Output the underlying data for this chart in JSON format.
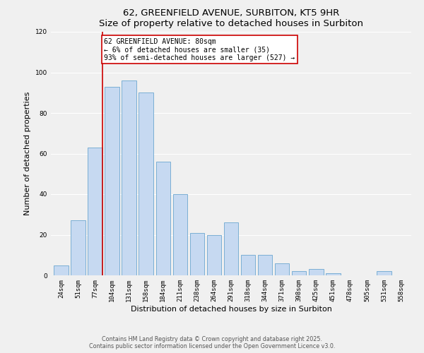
{
  "title": "62, GREENFIELD AVENUE, SURBITON, KT5 9HR",
  "subtitle": "Size of property relative to detached houses in Surbiton",
  "xlabel": "Distribution of detached houses by size in Surbiton",
  "ylabel": "Number of detached properties",
  "bar_labels": [
    "24sqm",
    "51sqm",
    "77sqm",
    "104sqm",
    "131sqm",
    "158sqm",
    "184sqm",
    "211sqm",
    "238sqm",
    "264sqm",
    "291sqm",
    "318sqm",
    "344sqm",
    "371sqm",
    "398sqm",
    "425sqm",
    "451sqm",
    "478sqm",
    "505sqm",
    "531sqm",
    "558sqm"
  ],
  "bar_values": [
    5,
    27,
    63,
    93,
    96,
    90,
    56,
    40,
    21,
    20,
    26,
    10,
    10,
    6,
    2,
    3,
    1,
    0,
    0,
    2,
    0
  ],
  "bar_color": "#c6d9f1",
  "bar_edge_color": "#7bafd4",
  "property_line_label": "62 GREENFIELD AVENUE: 80sqm",
  "annotation_line1": "← 6% of detached houses are smaller (35)",
  "annotation_line2": "93% of semi-detached houses are larger (527) →",
  "annotation_box_color": "#ffffff",
  "annotation_box_edge_color": "#cc0000",
  "property_line_color": "#cc0000",
  "property_line_x": 2.425,
  "ylim": [
    0,
    120
  ],
  "footnote1": "Contains HM Land Registry data © Crown copyright and database right 2025.",
  "footnote2": "Contains public sector information licensed under the Open Government Licence v3.0.",
  "background_color": "#f0f0f0",
  "grid_color": "#ffffff",
  "title_fontsize": 9.5,
  "subtitle_fontsize": 8.5,
  "axis_label_fontsize": 8,
  "tick_fontsize": 6.5,
  "annotation_fontsize": 7,
  "footnote_fontsize": 5.8
}
